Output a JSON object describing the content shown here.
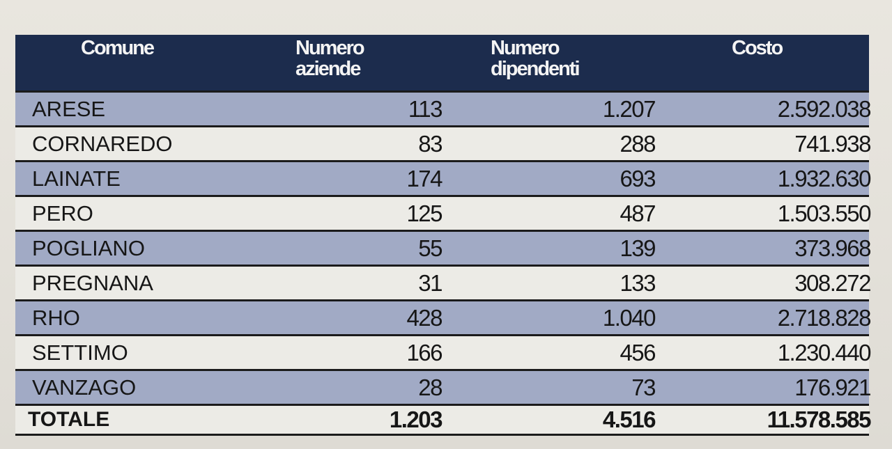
{
  "table": {
    "headers": {
      "comune": "Comune",
      "aziende": "Numero\naziende",
      "dipendenti": "Numero\ndipendenti",
      "costo": "Costo"
    },
    "rows": [
      {
        "comune": "ARESE",
        "aziende": "113",
        "dipendenti": "1.207",
        "costo": "2.592.038"
      },
      {
        "comune": "CORNAREDO",
        "aziende": "83",
        "dipendenti": "288",
        "costo": "741.938"
      },
      {
        "comune": "LAINATE",
        "aziende": "174",
        "dipendenti": "693",
        "costo": "1.932.630"
      },
      {
        "comune": "PERO",
        "aziende": "125",
        "dipendenti": "487",
        "costo": "1.503.550"
      },
      {
        "comune": "POGLIANO",
        "aziende": "55",
        "dipendenti": "139",
        "costo": "373.968"
      },
      {
        "comune": "PREGNANA",
        "aziende": "31",
        "dipendenti": "133",
        "costo": "308.272"
      },
      {
        "comune": "RHO",
        "aziende": "428",
        "dipendenti": "1.040",
        "costo": "2.718.828"
      },
      {
        "comune": "SETTIMO",
        "aziende": "166",
        "dipendenti": "456",
        "costo": "1.230.440"
      },
      {
        "comune": "VANZAGO",
        "aziende": "28",
        "dipendenti": "73",
        "costo": "176.921"
      }
    ],
    "total": {
      "comune": "TOTALE",
      "aziende": "1.203",
      "dipendenti": "4.516",
      "costo": "11.578.585"
    }
  },
  "colors": {
    "header_bg": "#1c2c4d",
    "row_shaded": "#a1aac5",
    "row_plain": "#ecebe6"
  }
}
